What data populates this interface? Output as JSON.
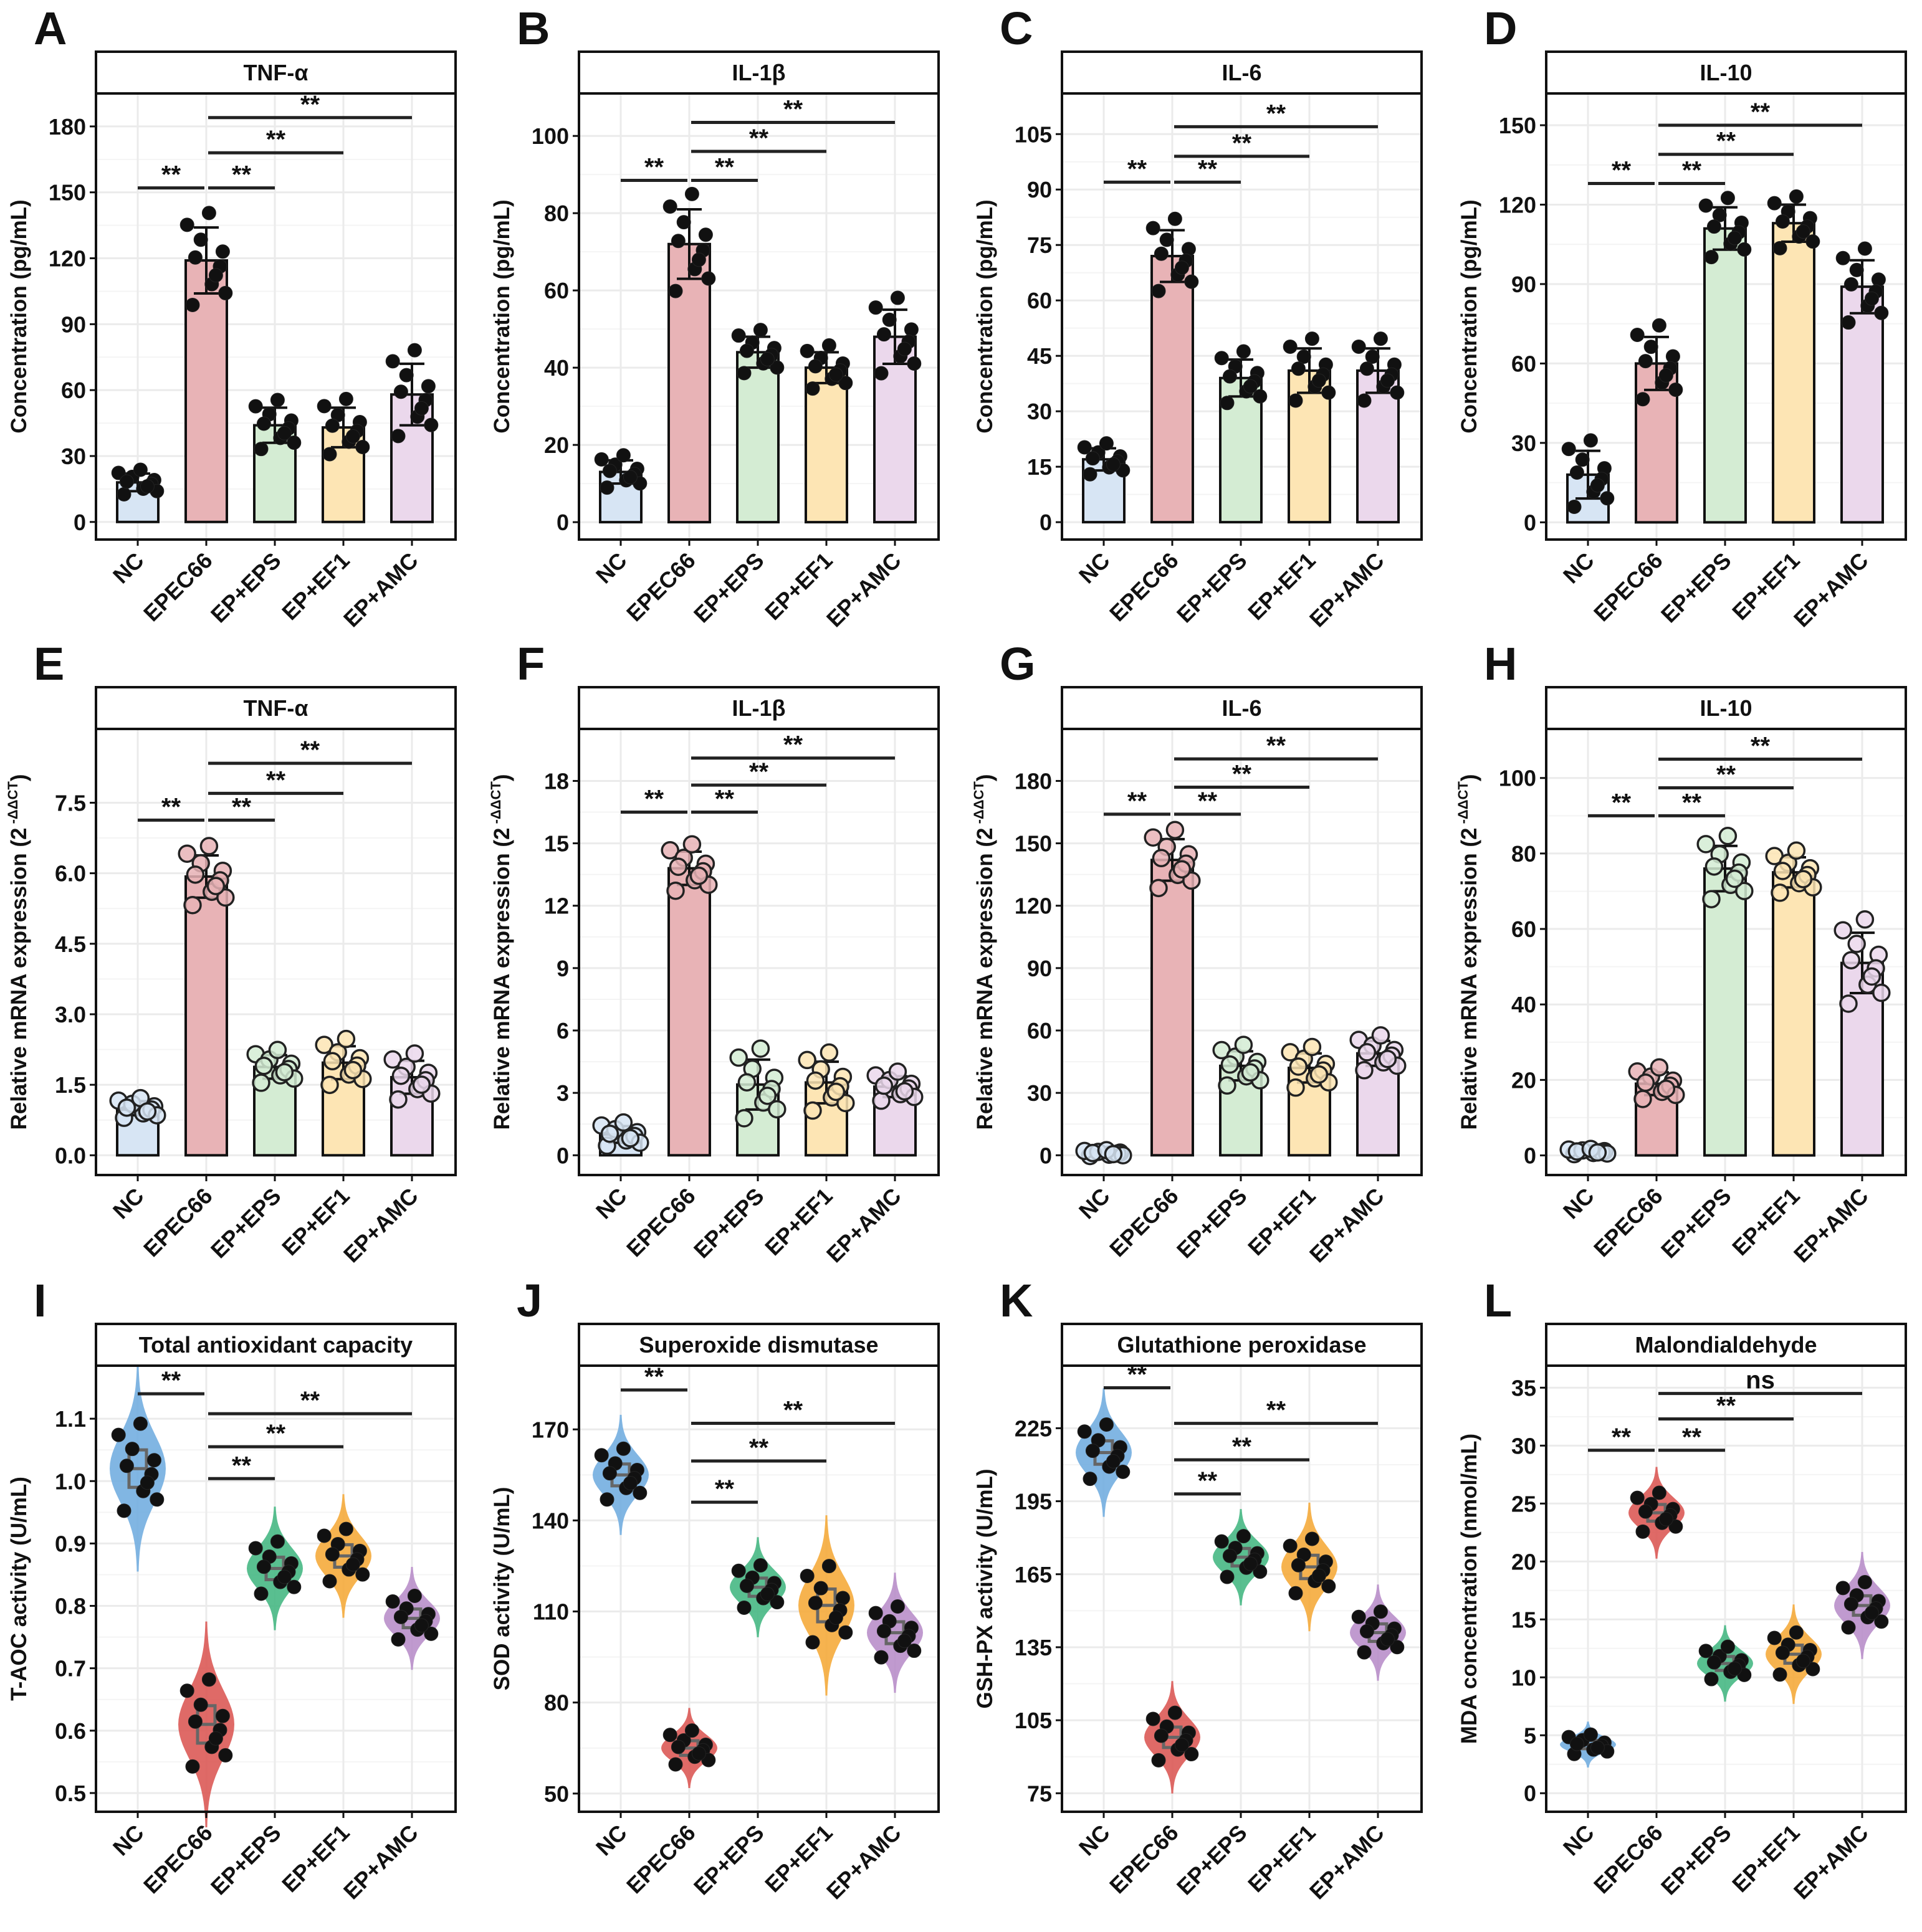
{
  "categories": [
    "NC",
    "EPEC66",
    "EP+EPS",
    "EP+EF1",
    "EP+AMC"
  ],
  "colors": {
    "bar_fill": [
      "#d7e5f4",
      "#e8b3b6",
      "#d4ecd3",
      "#fde5b4",
      "#ebd8ec"
    ],
    "violin_fill": [
      "#73aee0",
      "#dc5a57",
      "#47b884",
      "#f5ab3c",
      "#b98fca"
    ],
    "grid": "#ebebeb"
  },
  "chart_data": [
    {
      "letter": "A",
      "type": "bar",
      "title": "TNF-α",
      "ylabel": "Concentration (pg/mL)",
      "ylim": [
        -8,
        195
      ],
      "yticks": [
        0,
        30,
        60,
        90,
        120,
        150,
        180
      ],
      "tick_fmt": 0,
      "means": [
        18,
        119,
        44,
        43,
        58
      ],
      "sd": [
        4,
        15,
        8,
        9,
        14
      ],
      "sig": [
        {
          "from": 0,
          "to": 1,
          "y": 152,
          "label": "**"
        },
        {
          "from": 1,
          "to": 2,
          "y": 152,
          "label": "**"
        },
        {
          "from": 1,
          "to": 3,
          "y": 168,
          "label": "**"
        },
        {
          "from": 1,
          "to": 4,
          "y": 184,
          "label": "**"
        }
      ]
    },
    {
      "letter": "B",
      "type": "bar",
      "title": "IL-1β",
      "ylabel": "Concentration (pg/mL)",
      "ylim": [
        -4.5,
        111
      ],
      "yticks": [
        0,
        20,
        40,
        60,
        80,
        100
      ],
      "tick_fmt": 0,
      "means": [
        13,
        72,
        44,
        40,
        48
      ],
      "sd": [
        3,
        9,
        4,
        4,
        7
      ],
      "sig": [
        {
          "from": 0,
          "to": 1,
          "y": 88.5,
          "label": "**"
        },
        {
          "from": 1,
          "to": 2,
          "y": 88.5,
          "label": "**"
        },
        {
          "from": 1,
          "to": 3,
          "y": 96,
          "label": "**"
        },
        {
          "from": 1,
          "to": 4,
          "y": 103.5,
          "label": "**"
        }
      ]
    },
    {
      "letter": "C",
      "type": "bar",
      "title": "IL-6",
      "ylabel": "Concentration (pg/mL)",
      "ylim": [
        -4.7,
        116
      ],
      "yticks": [
        0,
        15,
        30,
        45,
        60,
        75,
        90,
        105
      ],
      "tick_fmt": 0,
      "means": [
        17,
        72,
        39,
        41,
        41
      ],
      "sd": [
        3,
        7,
        5,
        6,
        6
      ],
      "sig": [
        {
          "from": 0,
          "to": 1,
          "y": 92,
          "label": "**"
        },
        {
          "from": 1,
          "to": 2,
          "y": 92,
          "label": "**"
        },
        {
          "from": 1,
          "to": 3,
          "y": 99,
          "label": "**"
        },
        {
          "from": 1,
          "to": 4,
          "y": 107,
          "label": "**"
        }
      ]
    },
    {
      "letter": "D",
      "type": "bar",
      "title": "IL-10",
      "ylabel": "Concentration (pg/mL)",
      "ylim": [
        -6.5,
        162
      ],
      "yticks": [
        0,
        30,
        60,
        90,
        120,
        150
      ],
      "tick_fmt": 0,
      "means": [
        18,
        60,
        111,
        113,
        89
      ],
      "sd": [
        9,
        10,
        8,
        7,
        10
      ],
      "sig": [
        {
          "from": 0,
          "to": 1,
          "y": 128,
          "label": "**"
        },
        {
          "from": 1,
          "to": 2,
          "y": 128,
          "label": "**"
        },
        {
          "from": 1,
          "to": 3,
          "y": 139,
          "label": "**"
        },
        {
          "from": 1,
          "to": 4,
          "y": 150,
          "label": "**"
        }
      ]
    },
    {
      "letter": "E",
      "type": "bar_open",
      "title": "TNF-α",
      "ylabel": "Relative mRNA expression (2",
      "ylabel_sup": "-ΔΔCT",
      "ylabel_end": ")",
      "ylim": [
        -0.42,
        9.07
      ],
      "yticks": [
        0,
        1.5,
        3,
        4.5,
        6,
        7.5
      ],
      "tick_fmt": 1,
      "means": [
        1.0,
        5.93,
        1.88,
        1.97,
        1.66
      ],
      "sd": [
        0.15,
        0.45,
        0.25,
        0.35,
        0.35
      ],
      "sig": [
        {
          "from": 0,
          "to": 1,
          "y": 7.13,
          "label": "**"
        },
        {
          "from": 1,
          "to": 2,
          "y": 7.13,
          "label": "**"
        },
        {
          "from": 1,
          "to": 3,
          "y": 7.7,
          "label": "**"
        },
        {
          "from": 1,
          "to": 4,
          "y": 8.34,
          "label": "**"
        }
      ]
    },
    {
      "letter": "F",
      "type": "bar_open",
      "title": "IL-1β",
      "ylabel": "Relative mRNA expression (2",
      "ylabel_sup": "-ΔΔCT",
      "ylabel_end": ")",
      "ylim": [
        -0.95,
        20.5
      ],
      "yticks": [
        0,
        3,
        6,
        9,
        12,
        15,
        18
      ],
      "tick_fmt": 0,
      "means": [
        1.0,
        13.8,
        3.4,
        3.5,
        3.3
      ],
      "sd": [
        0.4,
        0.8,
        1.2,
        1.0,
        0.5
      ],
      "sig": [
        {
          "from": 0,
          "to": 1,
          "y": 16.5,
          "label": "**"
        },
        {
          "from": 1,
          "to": 2,
          "y": 16.5,
          "label": "**"
        },
        {
          "from": 1,
          "to": 3,
          "y": 17.8,
          "label": "**"
        },
        {
          "from": 1,
          "to": 4,
          "y": 19.1,
          "label": "**"
        }
      ]
    },
    {
      "letter": "G",
      "type": "bar_open",
      "title": "IL-6",
      "ylabel": "Relative mRNA expression (2",
      "ylabel_sup": "-ΔΔCT",
      "ylabel_end": ")",
      "ylim": [
        -9.5,
        205
      ],
      "yticks": [
        0,
        30,
        60,
        90,
        120,
        150,
        180
      ],
      "tick_fmt": 0,
      "means": [
        1,
        142,
        43,
        42,
        49
      ],
      "sd": [
        1,
        10,
        7,
        7,
        6
      ],
      "sig": [
        {
          "from": 0,
          "to": 1,
          "y": 164,
          "label": "**"
        },
        {
          "from": 1,
          "to": 2,
          "y": 164,
          "label": "**"
        },
        {
          "from": 1,
          "to": 3,
          "y": 177,
          "label": "**"
        },
        {
          "from": 1,
          "to": 4,
          "y": 190.6,
          "label": "**"
        }
      ]
    },
    {
      "letter": "H",
      "type": "bar_open",
      "title": "IL-10",
      "ylabel": "Relative mRNA expression (2",
      "ylabel_sup": "-ΔΔCT",
      "ylabel_end": ")",
      "ylim": [
        -5.2,
        113
      ],
      "yticks": [
        0,
        20,
        40,
        60,
        80,
        100
      ],
      "tick_fmt": 0,
      "means": [
        1,
        19,
        76,
        75,
        51
      ],
      "sd": [
        0.5,
        3,
        6,
        4,
        8
      ],
      "sig": [
        {
          "from": 0,
          "to": 1,
          "y": 90,
          "label": "**"
        },
        {
          "from": 1,
          "to": 2,
          "y": 90,
          "label": "**"
        },
        {
          "from": 1,
          "to": 3,
          "y": 97.4,
          "label": "**"
        },
        {
          "from": 1,
          "to": 4,
          "y": 105,
          "label": "**"
        }
      ]
    },
    {
      "letter": "I",
      "type": "violin",
      "title": "Total antioxidant capacity",
      "ylabel": "T-AOC activity (U/mL)",
      "ylim": [
        0.47,
        1.185
      ],
      "yticks": [
        0.5,
        0.6,
        0.7,
        0.8,
        0.9,
        1.0,
        1.1
      ],
      "tick_fmt": 1,
      "means": [
        1.02,
        0.61,
        0.86,
        0.88,
        0.78
      ],
      "sd": [
        0.05,
        0.05,
        0.03,
        0.03,
        0.025
      ],
      "sig": [
        {
          "from": 0,
          "to": 1,
          "y": 1.14,
          "label": "**"
        },
        {
          "from": 1,
          "to": 2,
          "y": 1.004,
          "label": "**"
        },
        {
          "from": 1,
          "to": 3,
          "y": 1.055,
          "label": "**"
        },
        {
          "from": 1,
          "to": 4,
          "y": 1.108,
          "label": "**"
        }
      ]
    },
    {
      "letter": "J",
      "type": "violin",
      "title": "Superoxide dismutase",
      "ylabel": "SOD activity (U/mL)",
      "ylim": [
        44,
        191
      ],
      "yticks": [
        50,
        80,
        110,
        140,
        170
      ],
      "tick_fmt": 0,
      "means": [
        155,
        65,
        118,
        112,
        103
      ],
      "sd": [
        6,
        4,
        5,
        9,
        6
      ],
      "sig": [
        {
          "from": 0,
          "to": 1,
          "y": 183,
          "label": "**"
        },
        {
          "from": 1,
          "to": 2,
          "y": 146,
          "label": "**"
        },
        {
          "from": 1,
          "to": 3,
          "y": 159.6,
          "label": "**"
        },
        {
          "from": 1,
          "to": 4,
          "y": 172,
          "label": "**"
        }
      ]
    },
    {
      "letter": "K",
      "type": "violin",
      "title": "Glutathione peroxidase",
      "ylabel": "GSH-PX activity (U/mL)",
      "ylim": [
        67.4,
        250.7
      ],
      "yticks": [
        75,
        105,
        135,
        165,
        195,
        225
      ],
      "tick_fmt": 0,
      "means": [
        215,
        98,
        172,
        168,
        141
      ],
      "sd": [
        8,
        7,
        6,
        8,
        6
      ],
      "sig": [
        {
          "from": 0,
          "to": 1,
          "y": 241.6,
          "label": "**"
        },
        {
          "from": 1,
          "to": 2,
          "y": 198,
          "label": "**"
        },
        {
          "from": 1,
          "to": 3,
          "y": 212,
          "label": "**"
        },
        {
          "from": 1,
          "to": 4,
          "y": 227,
          "label": "**"
        }
      ]
    },
    {
      "letter": "L",
      "type": "violin",
      "title": "Malondialdehyde",
      "ylabel": "MDA concentration (nmol/mL)",
      "ylim": [
        -1.6,
        36.9
      ],
      "yticks": [
        0,
        5,
        10,
        15,
        20,
        25,
        30,
        35
      ],
      "tick_fmt": 0,
      "means": [
        4.2,
        24.2,
        11.2,
        12.0,
        16.2
      ],
      "sd": [
        0.6,
        1.2,
        1.0,
        1.3,
        1.4
      ],
      "sig": [
        {
          "from": 0,
          "to": 1,
          "y": 29.6,
          "label": "**"
        },
        {
          "from": 1,
          "to": 2,
          "y": 29.6,
          "label": "**"
        },
        {
          "from": 1,
          "to": 3,
          "y": 32.3,
          "label": "**"
        },
        {
          "from": 1,
          "to": 4,
          "y": 34.5,
          "label": "ns"
        }
      ]
    }
  ]
}
